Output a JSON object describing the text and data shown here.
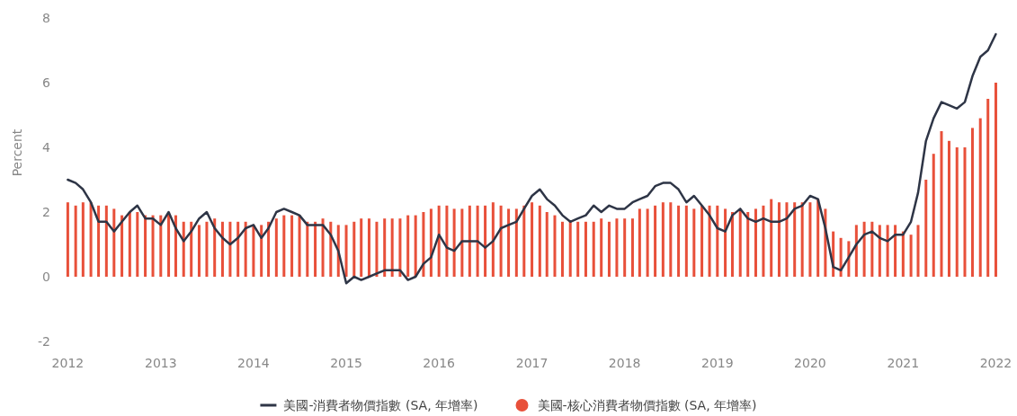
{
  "chart_data": {
    "type": "bar",
    "ylabel": "Percent",
    "x": [
      "2012-01",
      "2012-02",
      "2012-03",
      "2012-04",
      "2012-05",
      "2012-06",
      "2012-07",
      "2012-08",
      "2012-09",
      "2012-10",
      "2012-11",
      "2012-12",
      "2013-01",
      "2013-02",
      "2013-03",
      "2013-04",
      "2013-05",
      "2013-06",
      "2013-07",
      "2013-08",
      "2013-09",
      "2013-10",
      "2013-11",
      "2013-12",
      "2014-01",
      "2014-02",
      "2014-03",
      "2014-04",
      "2014-05",
      "2014-06",
      "2014-07",
      "2014-08",
      "2014-09",
      "2014-10",
      "2014-11",
      "2014-12",
      "2015-01",
      "2015-02",
      "2015-03",
      "2015-04",
      "2015-05",
      "2015-06",
      "2015-07",
      "2015-08",
      "2015-09",
      "2015-10",
      "2015-11",
      "2015-12",
      "2016-01",
      "2016-02",
      "2016-03",
      "2016-04",
      "2016-05",
      "2016-06",
      "2016-07",
      "2016-08",
      "2016-09",
      "2016-10",
      "2016-11",
      "2016-12",
      "2017-01",
      "2017-02",
      "2017-03",
      "2017-04",
      "2017-05",
      "2017-06",
      "2017-07",
      "2017-08",
      "2017-09",
      "2017-10",
      "2017-11",
      "2017-12",
      "2018-01",
      "2018-02",
      "2018-03",
      "2018-04",
      "2018-05",
      "2018-06",
      "2018-07",
      "2018-08",
      "2018-09",
      "2018-10",
      "2018-11",
      "2018-12",
      "2019-01",
      "2019-02",
      "2019-03",
      "2019-04",
      "2019-05",
      "2019-06",
      "2019-07",
      "2019-08",
      "2019-09",
      "2019-10",
      "2019-11",
      "2019-12",
      "2020-01",
      "2020-02",
      "2020-03",
      "2020-04",
      "2020-05",
      "2020-06",
      "2020-07",
      "2020-08",
      "2020-09",
      "2020-10",
      "2020-11",
      "2020-12",
      "2021-01",
      "2021-02",
      "2021-03",
      "2021-04",
      "2021-05",
      "2021-06",
      "2021-07",
      "2021-08",
      "2021-09",
      "2021-10",
      "2021-11",
      "2021-12",
      "2022-01"
    ],
    "series": [
      {
        "name": "美國-消費者物價指數 (SA, 年增率)",
        "type": "line",
        "color": "#2e3546",
        "values": [
          3.0,
          2.9,
          2.7,
          2.3,
          1.7,
          1.7,
          1.4,
          1.7,
          2.0,
          2.2,
          1.8,
          1.8,
          1.6,
          2.0,
          1.5,
          1.1,
          1.4,
          1.8,
          2.0,
          1.5,
          1.2,
          1.0,
          1.2,
          1.5,
          1.6,
          1.2,
          1.5,
          2.0,
          2.1,
          2.0,
          1.9,
          1.6,
          1.6,
          1.6,
          1.3,
          0.8,
          -0.2,
          0.0,
          -0.1,
          0.0,
          0.1,
          0.2,
          0.2,
          0.2,
          -0.1,
          0.0,
          0.4,
          0.6,
          1.3,
          0.9,
          0.8,
          1.1,
          1.1,
          1.1,
          0.9,
          1.1,
          1.5,
          1.6,
          1.7,
          2.1,
          2.5,
          2.7,
          2.4,
          2.2,
          1.9,
          1.7,
          1.8,
          1.9,
          2.2,
          2.0,
          2.2,
          2.1,
          2.1,
          2.3,
          2.4,
          2.5,
          2.8,
          2.9,
          2.9,
          2.7,
          2.3,
          2.5,
          2.2,
          1.9,
          1.5,
          1.4,
          1.9,
          2.1,
          1.8,
          1.7,
          1.8,
          1.7,
          1.7,
          1.8,
          2.1,
          2.2,
          2.5,
          2.4,
          1.5,
          0.3,
          0.2,
          0.6,
          1.0,
          1.3,
          1.4,
          1.2,
          1.1,
          1.3,
          1.3,
          1.7,
          2.6,
          4.2,
          4.9,
          5.4,
          5.3,
          5.2,
          5.4,
          6.2,
          6.8,
          7.0,
          7.5
        ]
      },
      {
        "name": "美國-核心消費者物價指數 (SA, 年增率)",
        "color": "#e8503a",
        "values": [
          2.3,
          2.2,
          2.3,
          2.3,
          2.2,
          2.2,
          2.1,
          1.9,
          2.0,
          2.0,
          1.9,
          1.9,
          1.9,
          2.0,
          1.9,
          1.7,
          1.7,
          1.6,
          1.7,
          1.8,
          1.7,
          1.7,
          1.7,
          1.7,
          1.6,
          1.6,
          1.7,
          1.8,
          1.9,
          1.9,
          1.9,
          1.7,
          1.7,
          1.8,
          1.7,
          1.6,
          1.6,
          1.7,
          1.8,
          1.8,
          1.7,
          1.8,
          1.8,
          1.8,
          1.9,
          1.9,
          2.0,
          2.1,
          2.2,
          2.2,
          2.1,
          2.1,
          2.2,
          2.2,
          2.2,
          2.3,
          2.2,
          2.1,
          2.1,
          2.2,
          2.3,
          2.2,
          2.0,
          1.9,
          1.7,
          1.7,
          1.7,
          1.7,
          1.7,
          1.8,
          1.7,
          1.8,
          1.8,
          1.8,
          2.1,
          2.1,
          2.2,
          2.3,
          2.3,
          2.2,
          2.2,
          2.1,
          2.2,
          2.2,
          2.2,
          2.1,
          2.0,
          2.1,
          2.0,
          2.1,
          2.2,
          2.4,
          2.3,
          2.3,
          2.3,
          2.3,
          2.3,
          2.4,
          2.1,
          1.4,
          1.2,
          1.1,
          1.6,
          1.7,
          1.7,
          1.6,
          1.6,
          1.6,
          1.4,
          1.3,
          1.6,
          3.0,
          3.8,
          4.5,
          4.2,
          4.0,
          4.0,
          4.6,
          4.9,
          5.5,
          6.0
        ]
      }
    ],
    "xlim": [
      "2011-12-20",
      "2022-01-10"
    ],
    "xticks": [
      "2012",
      "2013",
      "2014",
      "2015",
      "2016",
      "2017",
      "2018",
      "2019",
      "2020",
      "2021",
      "2022"
    ],
    "ylim": [
      -2,
      8
    ],
    "yticks": [
      -2,
      0,
      2,
      4,
      6,
      8
    ],
    "legend": "bottom"
  }
}
